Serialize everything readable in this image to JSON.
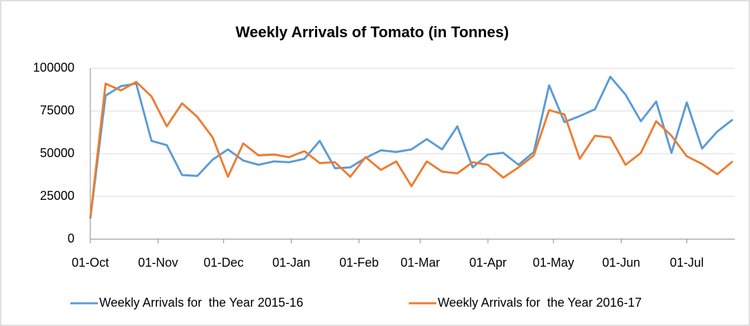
{
  "chart_data": {
    "type": "line",
    "title": "Weekly Arrivals of Tomato (in Tonnes)",
    "x": [
      0,
      7,
      14,
      21,
      28,
      35,
      42,
      49,
      56,
      63,
      70,
      77,
      84,
      91,
      98,
      105,
      112,
      119,
      126,
      133,
      140,
      147,
      154,
      161,
      168,
      175,
      182,
      189,
      196,
      203,
      210,
      217,
      224,
      231,
      238,
      245,
      252,
      259,
      266,
      273,
      280,
      287,
      294
    ],
    "xlim": [
      0,
      295
    ],
    "xticks": [
      {
        "value": 0,
        "label": "01-Oct"
      },
      {
        "value": 31,
        "label": "01-Nov"
      },
      {
        "value": 61,
        "label": "01-Dec"
      },
      {
        "value": 92,
        "label": "01-Jan"
      },
      {
        "value": 123,
        "label": "01-Feb"
      },
      {
        "value": 151,
        "label": "01-Mar"
      },
      {
        "value": 182,
        "label": "01-Apr"
      },
      {
        "value": 212,
        "label": "01-May"
      },
      {
        "value": 243,
        "label": "01-Jun"
      },
      {
        "value": 273,
        "label": "01-Jul"
      }
    ],
    "ylim": [
      0,
      100000
    ],
    "yticks": [
      0,
      25000,
      50000,
      75000,
      100000
    ],
    "grid": true,
    "legend": "bottom",
    "series": [
      {
        "name": "Weekly Arrivals for  the Year 2015-16",
        "color": "#5b9bd5",
        "values": [
          12000,
          84000,
          89500,
          91000,
          57500,
          55000,
          37500,
          37000,
          46500,
          52500,
          46000,
          43500,
          45500,
          45000,
          47000,
          57500,
          41500,
          42000,
          47500,
          52000,
          51000,
          52500,
          58500,
          52500,
          66000,
          42000,
          49500,
          50500,
          43500,
          51000,
          90000,
          68500,
          72000,
          76000,
          95000,
          84500,
          69000,
          80500,
          50500,
          80000,
          53000,
          63000,
          70000
        ]
      },
      {
        "name": "Weekly Arrivals for  the Year 2016-17",
        "color": "#ed7d31",
        "values": [
          12500,
          91000,
          87000,
          92000,
          83500,
          66000,
          79500,
          71500,
          59500,
          36500,
          56000,
          49000,
          49500,
          48000,
          51500,
          44500,
          45000,
          36500,
          48000,
          40500,
          45500,
          31000,
          45500,
          39500,
          38500,
          45000,
          43500,
          36000,
          42000,
          49000,
          75500,
          73000,
          47000,
          60500,
          59500,
          43500,
          50500,
          69000,
          60500,
          48500,
          44000,
          38000,
          45500
        ]
      }
    ]
  }
}
